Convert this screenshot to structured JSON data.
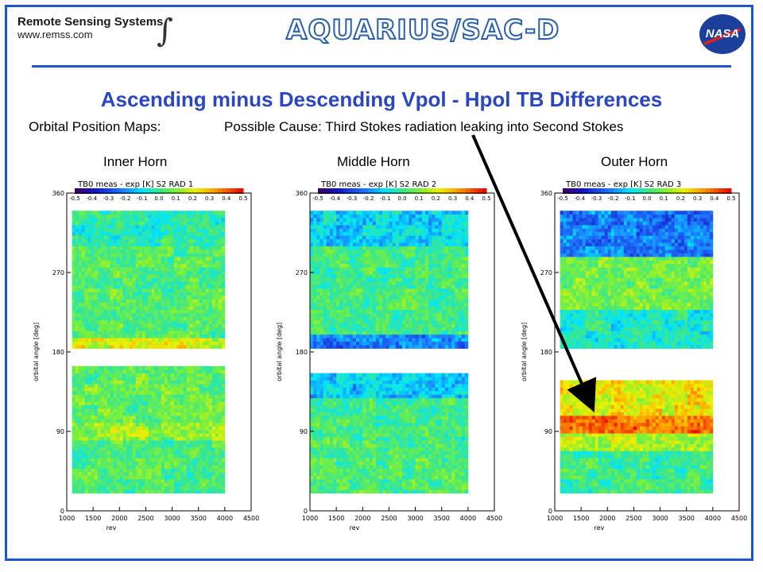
{
  "header": {
    "rss_name": "Remote Sensing Systems",
    "rss_url": "www.remss.com",
    "rss_mark": "∫",
    "mission_logo": "AQUARIUS/SAC-D",
    "nasa_logo": "NASA"
  },
  "title": "Ascending minus Descending Vpol - Hpol TB  Differences",
  "subtitle_left": "Orbital Position Maps:",
  "subtitle_right": "Possible Cause:  Third Stokes radiation leaking into Second Stokes",
  "colors": {
    "frame": "#1e54c8",
    "title": "#2a47c0",
    "arrow": "#000000"
  },
  "chart_data": [
    {
      "type": "heatmap",
      "horn_label": "Inner Horn",
      "title": "TB0 meas - exp [K]  S2  RAD 1",
      "xlabel": "rev",
      "ylabel": "orbital angle [deg]",
      "xlim": [
        1000,
        4500
      ],
      "ylim": [
        0,
        360
      ],
      "xticks": [
        "1000",
        "1500",
        "2000",
        "2500",
        "3000",
        "3500",
        "4000",
        "4500"
      ],
      "yticks": [
        "0",
        "90",
        "180",
        "270",
        "360"
      ],
      "colorbar": {
        "min": -0.5,
        "max": 0.5,
        "ticks": [
          "-0.5",
          "-0.4",
          "-0.3",
          "-0.2",
          "-0.1",
          "0.0",
          "0.1",
          "0.2",
          "0.3",
          "0.4",
          "0.5"
        ]
      },
      "data_rev_range": [
        1100,
        4000
      ],
      "gap_deg": [
        165,
        186
      ],
      "bands": [
        {
          "lo": 20,
          "hi": 80,
          "value": 0.03
        },
        {
          "lo": 80,
          "hi": 100,
          "value": 0.12
        },
        {
          "lo": 100,
          "hi": 165,
          "value": 0.06
        },
        {
          "lo": 186,
          "hi": 195,
          "value": 0.2
        },
        {
          "lo": 195,
          "hi": 300,
          "value": 0.04
        },
        {
          "lo": 300,
          "hi": 340,
          "value": -0.02
        }
      ]
    },
    {
      "type": "heatmap",
      "horn_label": "Middle Horn",
      "title": "TB0 meas - exp [K]  S2  RAD 2",
      "xlabel": "rev",
      "ylabel": "orbital angle [deg]",
      "xlim": [
        1000,
        4500
      ],
      "ylim": [
        0,
        360
      ],
      "xticks": [
        "1000",
        "1500",
        "2000",
        "2500",
        "3000",
        "3500",
        "4000",
        "4500"
      ],
      "yticks": [
        "0",
        "90",
        "180",
        "270",
        "360"
      ],
      "colorbar": {
        "min": -0.5,
        "max": 0.5,
        "ticks": [
          "-0.5",
          "-0.4",
          "-0.3",
          "-0.2",
          "-0.1",
          "0.0",
          "0.1",
          "0.2",
          "0.3",
          "0.4",
          "0.5"
        ]
      },
      "data_rev_range": [
        1000,
        4000
      ],
      "gap_deg": [
        155,
        186
      ],
      "bands": [
        {
          "lo": 20,
          "hi": 80,
          "value": 0.03
        },
        {
          "lo": 80,
          "hi": 130,
          "value": 0.01
        },
        {
          "lo": 130,
          "hi": 155,
          "value": -0.12
        },
        {
          "lo": 186,
          "hi": 200,
          "value": -0.2
        },
        {
          "lo": 200,
          "hi": 300,
          "value": 0.02
        },
        {
          "lo": 300,
          "hi": 340,
          "value": -0.1
        }
      ]
    },
    {
      "type": "heatmap",
      "horn_label": "Outer Horn",
      "title": "TB0 meas - exp [K]  S2  RAD 3",
      "xlabel": "rev",
      "ylabel": "orbital angle [deg]",
      "xlim": [
        1000,
        4500
      ],
      "ylim": [
        0,
        360
      ],
      "xticks": [
        "1000",
        "1500",
        "2000",
        "2500",
        "3000",
        "3500",
        "4000",
        "4500"
      ],
      "yticks": [
        "0",
        "90",
        "180",
        "270",
        "360"
      ],
      "colorbar": {
        "min": -0.5,
        "max": 0.5,
        "ticks": [
          "-0.5",
          "-0.4",
          "-0.3",
          "-0.2",
          "-0.1",
          "0.0",
          "0.1",
          "0.2",
          "0.3",
          "0.4",
          "0.5"
        ]
      },
      "data_rev_range": [
        1100,
        4000
      ],
      "gap_deg": [
        150,
        186
      ],
      "bands": [
        {
          "lo": 20,
          "hi": 70,
          "value": 0.0
        },
        {
          "lo": 70,
          "hi": 90,
          "value": 0.15
        },
        {
          "lo": 90,
          "hi": 110,
          "value": 0.38
        },
        {
          "lo": 110,
          "hi": 150,
          "value": 0.22
        },
        {
          "lo": 186,
          "hi": 230,
          "value": -0.05
        },
        {
          "lo": 230,
          "hi": 290,
          "value": 0.08
        },
        {
          "lo": 290,
          "hi": 340,
          "value": -0.22
        }
      ]
    }
  ]
}
